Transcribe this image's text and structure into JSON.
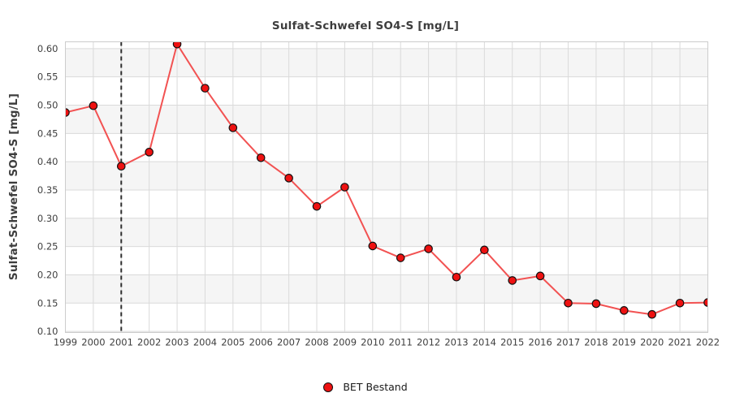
{
  "chart_data": {
    "type": "line",
    "title": "Sulfat-Schwefel SO4-S [mg/L]",
    "ylabel": "Sulfat-Schwefel SO4-S [mg/L]",
    "xlabel": "",
    "x": [
      1999,
      2000,
      2001,
      2002,
      2003,
      2004,
      2005,
      2006,
      2007,
      2008,
      2009,
      2010,
      2011,
      2012,
      2013,
      2014,
      2015,
      2016,
      2017,
      2018,
      2019,
      2020,
      2021,
      2022
    ],
    "series": [
      {
        "name": "BET Bestand",
        "values": [
          0.487,
          0.499,
          0.392,
          0.417,
          0.608,
          0.53,
          0.46,
          0.407,
          0.371,
          0.321,
          0.355,
          0.251,
          0.23,
          0.246,
          0.196,
          0.244,
          0.19,
          0.198,
          0.15,
          0.149,
          0.137,
          0.13,
          0.15,
          0.151
        ]
      }
    ],
    "yticks": [
      0.1,
      0.15,
      0.2,
      0.25,
      0.3,
      0.35,
      0.4,
      0.45,
      0.5,
      0.55,
      0.6
    ],
    "ylim": [
      0.098,
      0.612
    ],
    "grid": true,
    "banded_background": true,
    "reference_line_x": 2001,
    "legend_position": "bottom",
    "colors": {
      "line": "#f25252",
      "marker_fill": "#ee1111",
      "marker_edge": "#111111",
      "gridline": "#dadada",
      "plot_border": "#cccccc",
      "band_gray": "#f5f5f5",
      "band_white": "#ffffff",
      "reference_line": "#2e2e2e",
      "tick_text": "#3f3f3f"
    }
  },
  "legend": {
    "items": [
      {
        "label": "BET Bestand",
        "marker": "red-dot-icon"
      }
    ]
  }
}
